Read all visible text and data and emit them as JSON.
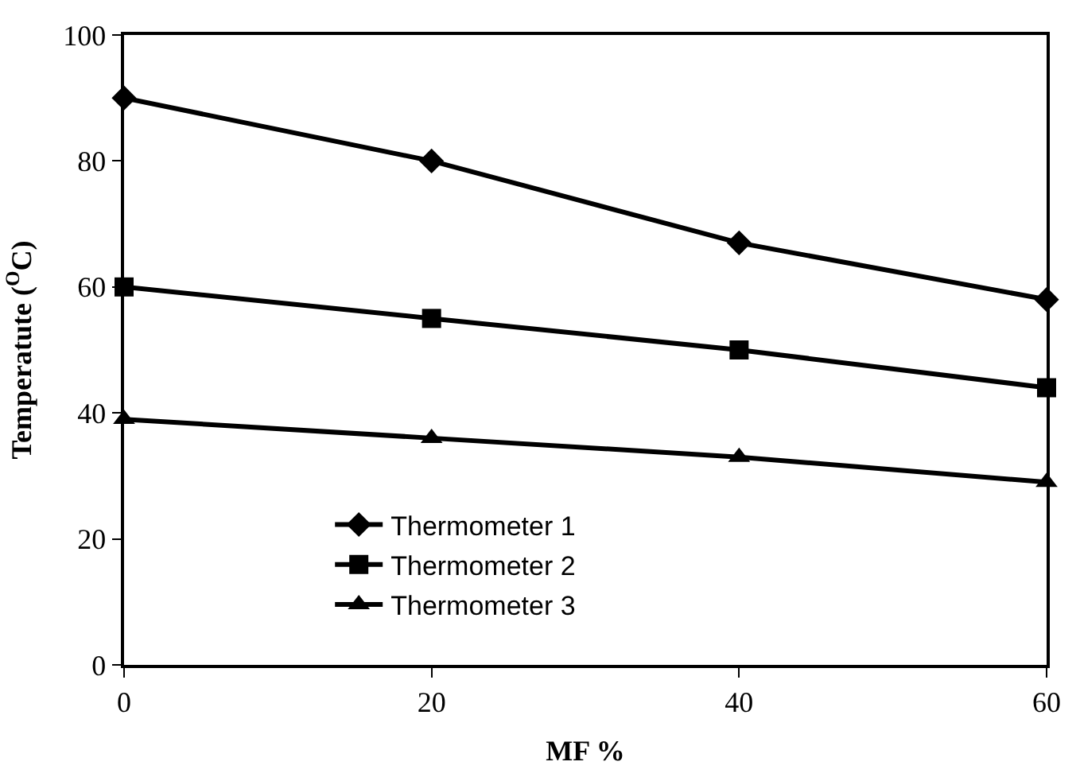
{
  "chart_data": {
    "type": "line",
    "xlabel": "MF %",
    "ylabel": "Temperatute ($^{O}$C)",
    "x": [
      0,
      20,
      40,
      60
    ],
    "xlim": [
      0,
      60
    ],
    "xticks": [
      0,
      20,
      40,
      60
    ],
    "ylim": [
      0,
      100
    ],
    "yticks": [
      0,
      20,
      40,
      60,
      80,
      100
    ],
    "series": [
      {
        "name": "Thermometer 1",
        "color": "#000000",
        "marker": "diamond",
        "values": [
          90,
          80,
          67,
          58
        ]
      },
      {
        "name": "Thermometer 2",
        "color": "#000000",
        "marker": "square",
        "values": [
          60,
          55,
          50,
          44
        ]
      },
      {
        "name": "Thermometer 3",
        "color": "#000000",
        "marker": "triangle",
        "values": [
          39,
          36,
          33,
          29
        ]
      }
    ],
    "legend": "bottom left",
    "line_style": "solid"
  }
}
